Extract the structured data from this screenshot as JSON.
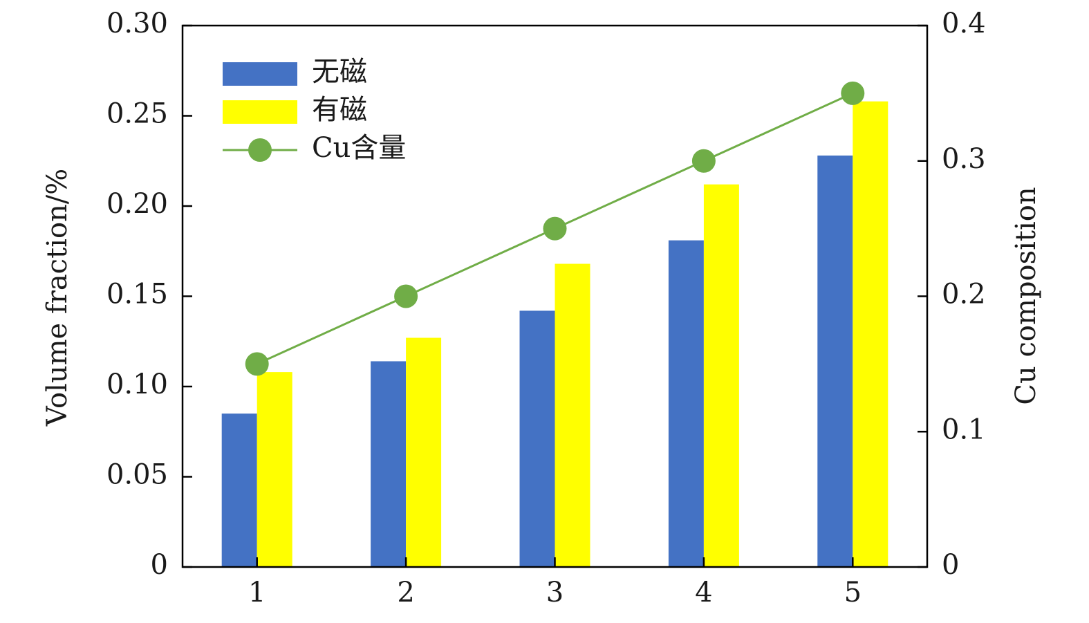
{
  "chart_data": {
    "type": "bar",
    "categories": [
      "1",
      "2",
      "3",
      "4",
      "5"
    ],
    "series": [
      {
        "name": "无磁",
        "type": "bar",
        "axis": "left",
        "color": "#4472C4",
        "values": [
          0.085,
          0.114,
          0.142,
          0.181,
          0.228
        ]
      },
      {
        "name": "有磁",
        "type": "bar",
        "axis": "left",
        "color": "#FFFF00",
        "values": [
          0.108,
          0.127,
          0.168,
          0.212,
          0.258
        ]
      },
      {
        "name": "Cu含量",
        "type": "line",
        "axis": "right",
        "color": "#70AD47",
        "values": [
          0.15,
          0.2,
          0.25,
          0.3,
          0.35
        ]
      }
    ],
    "ylabel": "Volume fraction/%",
    "y2label": "Cu composition",
    "xlabel": "",
    "ylim": [
      0,
      0.3
    ],
    "y2lim": [
      0,
      0.4
    ],
    "y_ticks": [
      "0",
      "0.05",
      "0.10",
      "0.15",
      "0.20",
      "0.25",
      "0.30"
    ],
    "y2_ticks": [
      "0",
      "0.1",
      "0.2",
      "0.3",
      "0.4"
    ],
    "legend_position": "top-left",
    "grid": false
  }
}
